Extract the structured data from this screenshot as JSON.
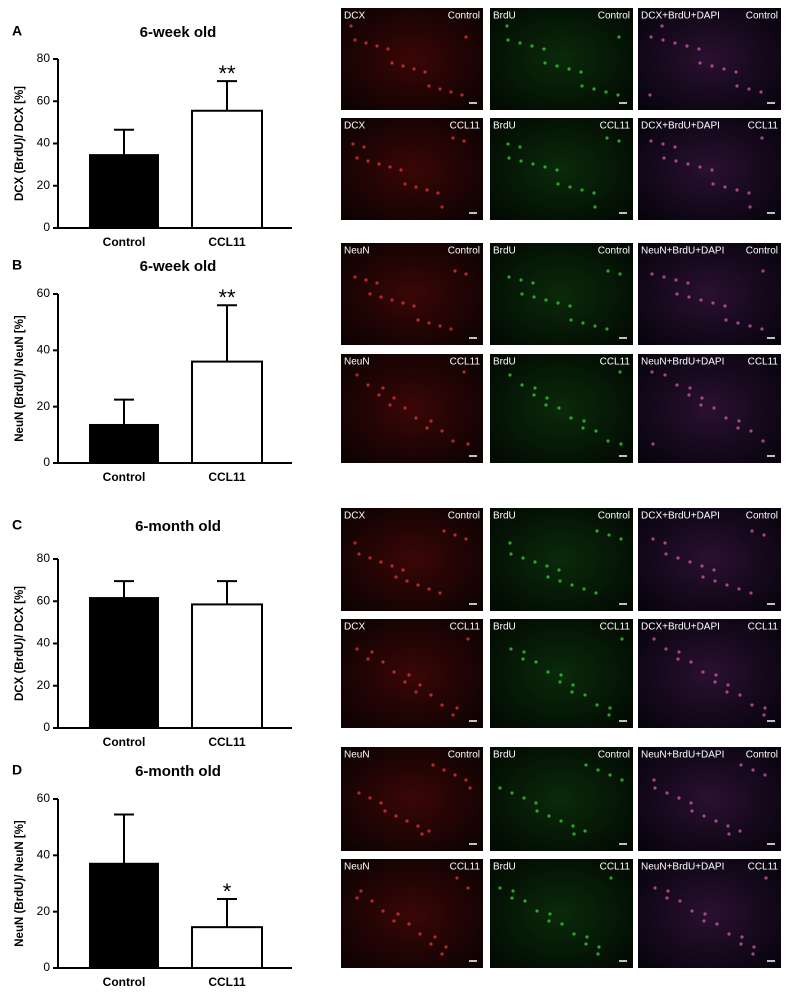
{
  "chart_data": [
    {
      "type": "bar",
      "panel": "A",
      "title": "6-week old",
      "y_label": "DCX (BrdU)/ DCX [%]",
      "categories": [
        "Control",
        "CCL11"
      ],
      "series": [
        {
          "colors": [
            "#000000",
            "#ffffff"
          ],
          "values": [
            34.5,
            55.5
          ],
          "errors": [
            12,
            14
          ]
        }
      ],
      "annotations": [
        null,
        "**"
      ],
      "ylim": [
        0,
        80
      ],
      "yticks": [
        0,
        20,
        40,
        60,
        80
      ]
    },
    {
      "type": "bar",
      "panel": "B",
      "title": "6-week old",
      "y_label": "NeuN (BrdU)/ NeuN [%]",
      "categories": [
        "Control",
        "CCL11"
      ],
      "series": [
        {
          "colors": [
            "#000000",
            "#ffffff"
          ],
          "values": [
            13.5,
            36
          ],
          "errors": [
            9,
            20
          ]
        }
      ],
      "annotations": [
        null,
        "**"
      ],
      "ylim": [
        0,
        60
      ],
      "yticks": [
        0,
        20,
        40,
        60
      ]
    },
    {
      "type": "bar",
      "panel": "C",
      "title": "6-month old",
      "y_label": "DCX (BrdU)/ DCX [%]",
      "categories": [
        "Control",
        "CCL11"
      ],
      "series": [
        {
          "colors": [
            "#000000",
            "#ffffff"
          ],
          "values": [
            61.5,
            58.5
          ],
          "errors": [
            8,
            11
          ]
        }
      ],
      "annotations": [
        null,
        null
      ],
      "ylim": [
        0,
        80
      ],
      "yticks": [
        0,
        20,
        40,
        60,
        80
      ]
    },
    {
      "type": "bar",
      "panel": "D",
      "title": "6-month old",
      "y_label": "NeuN (BrdU)/ NeuN [%]",
      "categories": [
        "Control",
        "CCL11"
      ],
      "series": [
        {
          "colors": [
            "#000000",
            "#ffffff"
          ],
          "values": [
            37,
            14.5
          ],
          "errors": [
            17.5,
            10
          ]
        }
      ],
      "annotations": [
        null,
        "*"
      ],
      "ylim": [
        0,
        60
      ],
      "yticks": [
        0,
        20,
        40,
        60
      ]
    }
  ],
  "image_rows": [
    [
      [
        "DCX",
        "Control"
      ],
      [
        "BrdU",
        "Control"
      ],
      [
        "DCX+BrdU+DAPI",
        "Control"
      ]
    ],
    [
      [
        "DCX",
        "CCL11"
      ],
      [
        "BrdU",
        "CCL11"
      ],
      [
        "DCX+BrdU+DAPI",
        "CCL11"
      ]
    ],
    [
      [
        "NeuN",
        "Control"
      ],
      [
        "BrdU",
        "Control"
      ],
      [
        "NeuN+BrdU+DAPI",
        "Control"
      ]
    ],
    [
      [
        "NeuN",
        "CCL11"
      ],
      [
        "BrdU",
        "CCL11"
      ],
      [
        "NeuN+BrdU+DAPI",
        "CCL11"
      ]
    ],
    [
      [
        "DCX",
        "Control"
      ],
      [
        "BrdU",
        "Control"
      ],
      [
        "DCX+BrdU+DAPI",
        "Control"
      ]
    ],
    [
      [
        "DCX",
        "CCL11"
      ],
      [
        "BrdU",
        "CCL11"
      ],
      [
        "DCX+BrdU+DAPI",
        "CCL11"
      ]
    ],
    [
      [
        "NeuN",
        "Control"
      ],
      [
        "BrdU",
        "Control"
      ],
      [
        "NeuN+BrdU+DAPI",
        "Control"
      ]
    ],
    [
      [
        "NeuN",
        "CCL11"
      ],
      [
        "BrdU",
        "CCL11"
      ],
      [
        "NeuN+BrdU+DAPI",
        "CCL11"
      ]
    ]
  ]
}
